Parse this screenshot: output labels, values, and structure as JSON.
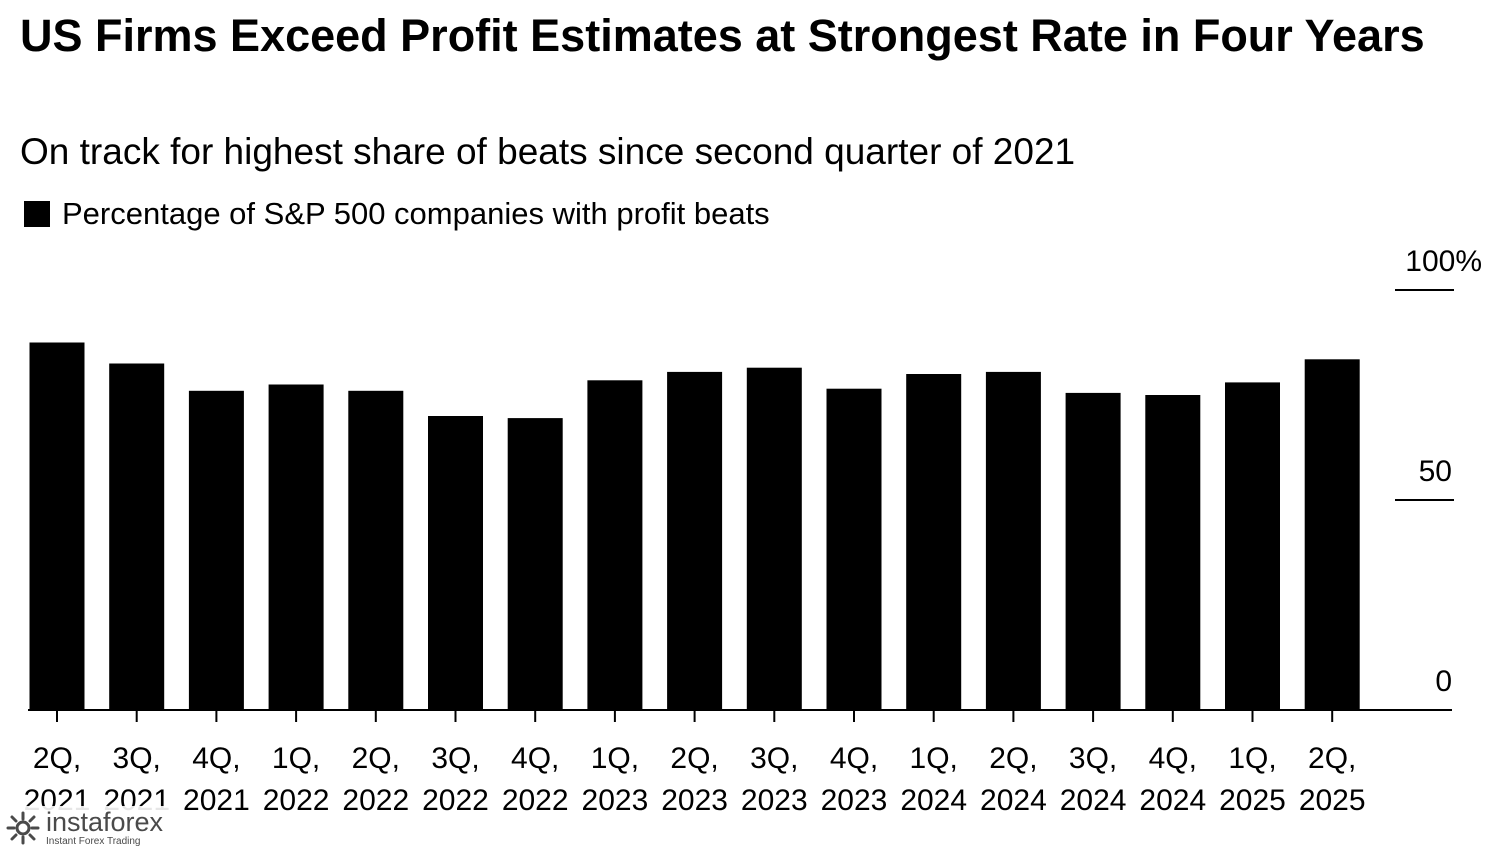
{
  "header": {
    "title": "US Firms Exceed Profit Estimates at Strongest Rate in Four Years",
    "subtitle": "On track for highest share of beats since second quarter of 2021"
  },
  "legend": {
    "label": "Percentage of S&P 500 companies with profit beats"
  },
  "chart_data": {
    "type": "bar",
    "title": "US Firms Exceed Profit Estimates at Strongest Rate in Four Years",
    "subtitle": "On track for highest share of beats since second quarter of 2021",
    "categories": [
      [
        "2Q,",
        "2021"
      ],
      [
        "3Q,",
        "2021"
      ],
      [
        "4Q,",
        "2021"
      ],
      [
        "1Q,",
        "2022"
      ],
      [
        "2Q,",
        "2022"
      ],
      [
        "3Q,",
        "2022"
      ],
      [
        "4Q,",
        "2022"
      ],
      [
        "1Q,",
        "2023"
      ],
      [
        "2Q,",
        "2023"
      ],
      [
        "3Q,",
        "2023"
      ],
      [
        "4Q,",
        "2023"
      ],
      [
        "1Q,",
        "2024"
      ],
      [
        "2Q,",
        "2024"
      ],
      [
        "3Q,",
        "2024"
      ],
      [
        "4Q,",
        "2024"
      ],
      [
        "1Q,",
        "2025"
      ],
      [
        "2Q,",
        "2025"
      ]
    ],
    "series": [
      {
        "name": "Percentage of S&P 500 companies with profit beats",
        "values": [
          87.5,
          82.5,
          76,
          77.5,
          76,
          70,
          69.5,
          78.5,
          80.5,
          81.5,
          76.5,
          80,
          80.5,
          75.5,
          75,
          78,
          83.5
        ]
      }
    ],
    "xlabel": "",
    "ylabel": "",
    "ylim": [
      0,
      100
    ],
    "yticks": [
      "0",
      "50",
      "100%"
    ],
    "bar_color": "#000000",
    "axis_side": "right",
    "legend_position": "top-left",
    "grid": false
  },
  "watermark": {
    "name": "instaforex",
    "tagline": "Instant Forex Trading",
    "color": "#4a4a4a"
  }
}
